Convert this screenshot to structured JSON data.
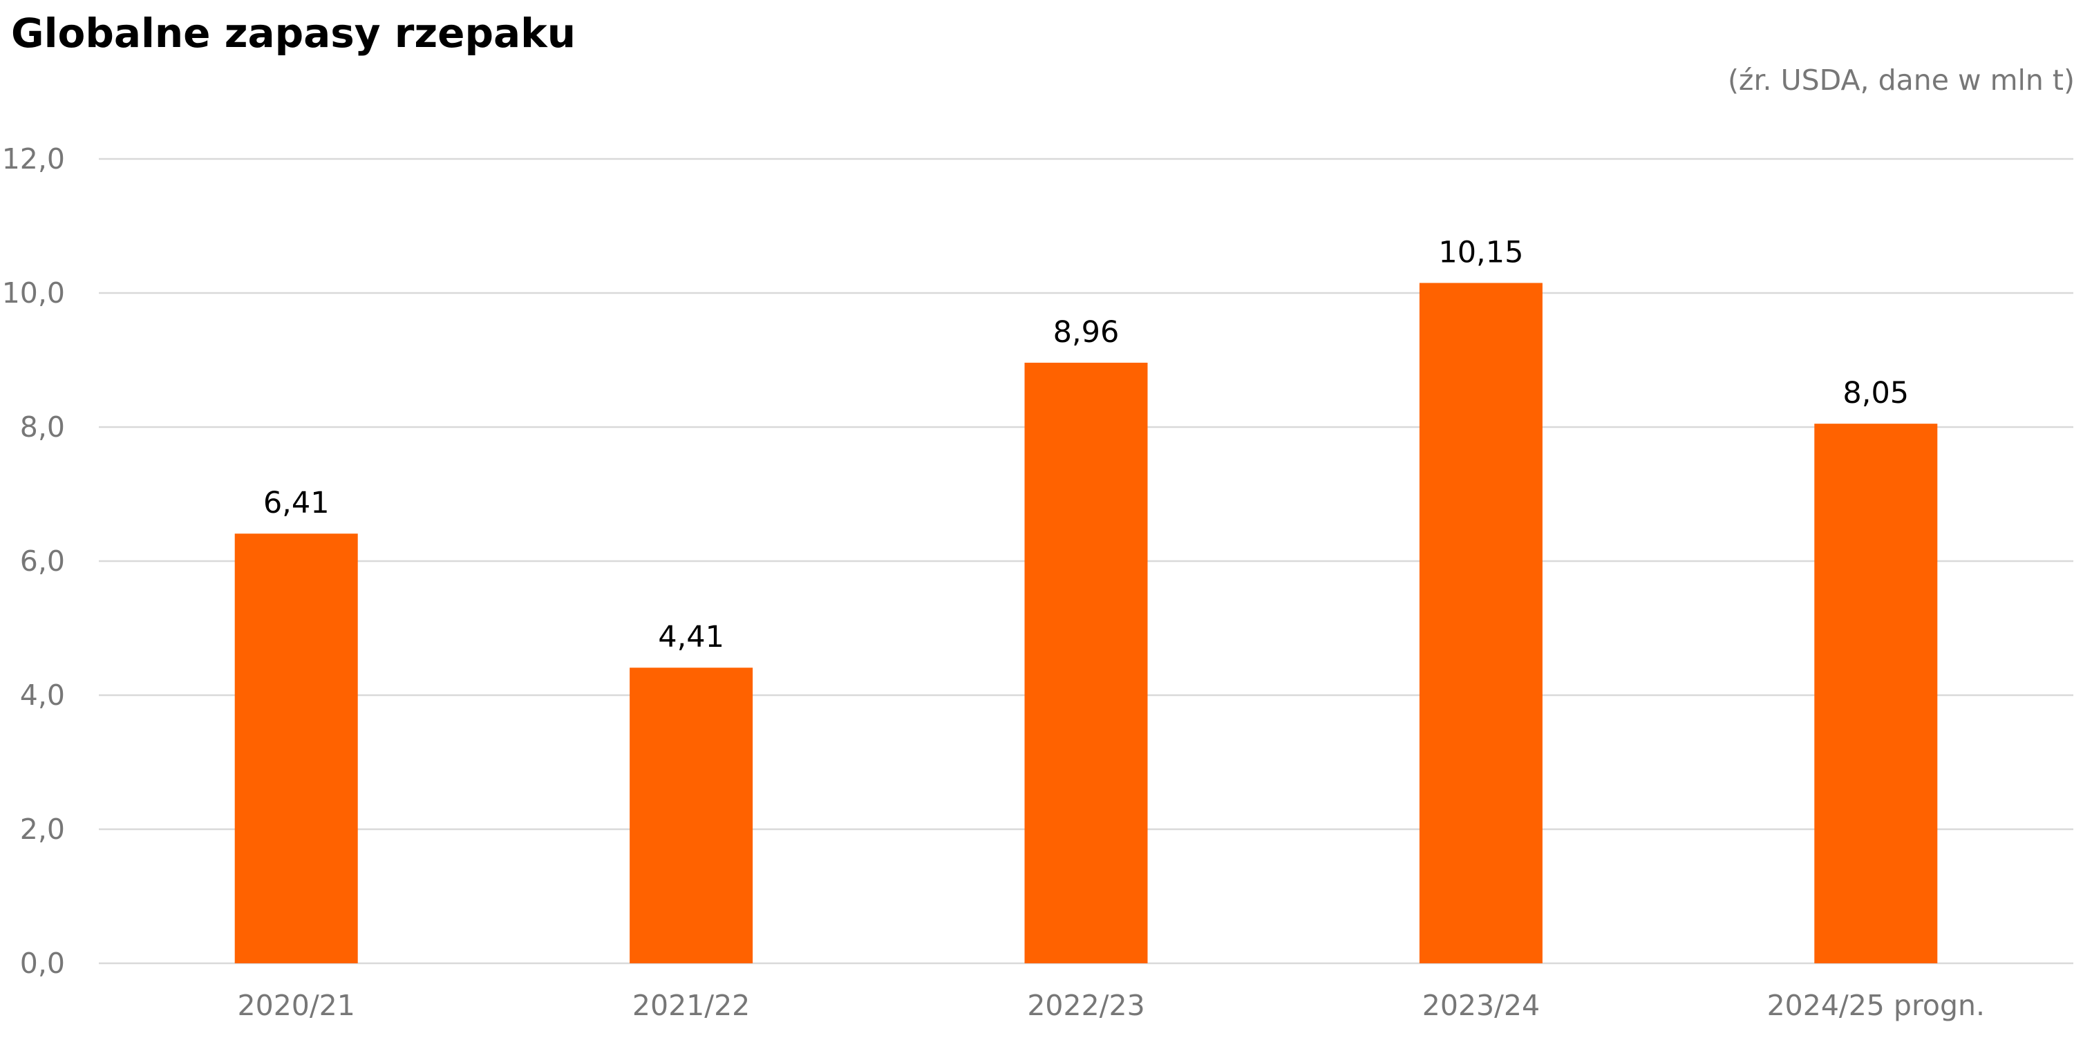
{
  "chart_data": {
    "type": "bar",
    "title": "Globalne zapasy rzepaku",
    "subtitle": "(źr. USDA, dane w mln t)",
    "categories": [
      "2020/21",
      "2021/22",
      "2022/23",
      "2023/24",
      "2024/25 progn."
    ],
    "values": [
      6.41,
      4.41,
      8.96,
      10.15,
      8.05
    ],
    "data_labels": [
      "6,41",
      "4,41",
      "8,96",
      "10,15",
      "8,05"
    ],
    "ylim": [
      0,
      12
    ],
    "yticks": [
      0,
      2,
      4,
      6,
      8,
      10,
      12
    ],
    "ytick_labels": [
      "0,0",
      "2,0",
      "4,0",
      "6,0",
      "8,0",
      "10,0",
      "12,0"
    ],
    "xlabel": "",
    "ylabel": "",
    "grid": true,
    "legend": "none",
    "colors": {
      "bar": "#FF6200",
      "grid": "#D9D9D9",
      "tick_text": "#777777",
      "data_label": "#000000"
    }
  }
}
